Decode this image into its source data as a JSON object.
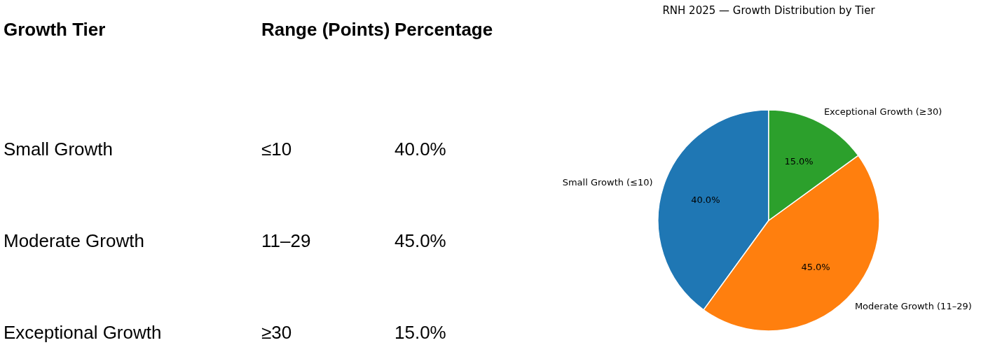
{
  "chart_data": [
    {
      "type": "other",
      "annotations": [
        "Growth Tier",
        "Range (Points)",
        "Percentage",
        "Small Growth",
        "≤10",
        "40.0%",
        "Moderate Growth",
        "11–29",
        "45.0%",
        "Exceptional Growth",
        "≥30",
        "15.0%"
      ]
    },
    {
      "type": "pie",
      "title": "RNH 2025 — Growth Distribution by Tier",
      "categories": [
        "Small Growth (≤10)",
        "Moderate Growth (11–29)",
        "Exceptional Growth (≥30)"
      ],
      "values": [
        40,
        45,
        15
      ],
      "colors": [
        "#1f77b4",
        "#ff7f0e",
        "#2ca02c"
      ],
      "value_labels": [
        "40.0%",
        "45.0%",
        "15.0%"
      ]
    }
  ]
}
